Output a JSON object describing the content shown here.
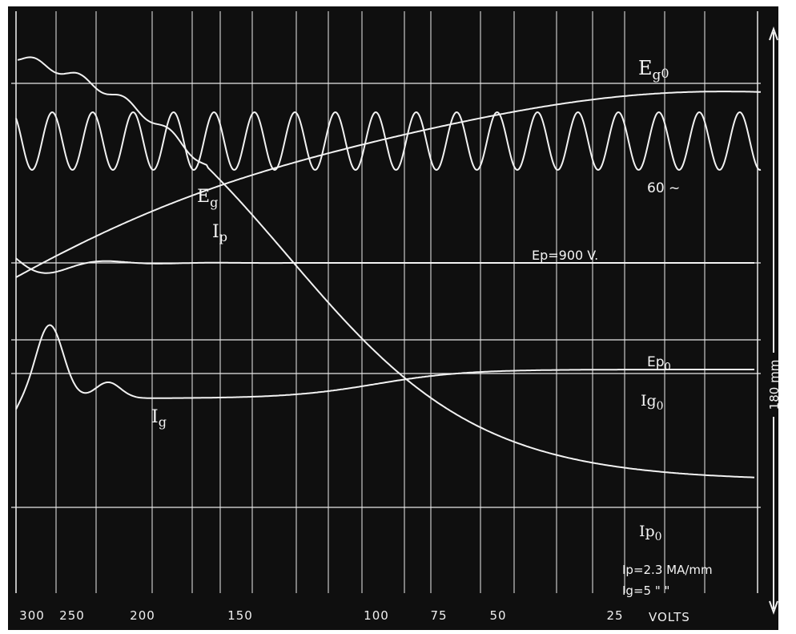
{
  "chart_data": {
    "type": "line",
    "x_axis": {
      "tick_labels": [
        "300",
        "250",
        "200",
        "150",
        "100",
        "75",
        "50",
        "25"
      ],
      "unit_label": "VOLTS"
    },
    "y_axis": {
      "scale_label": "180 mm"
    },
    "trace_labels": {
      "eg0": {
        "main": "E",
        "sub": "g",
        "subsub": "0"
      },
      "eg": {
        "main": "E",
        "sub": "g"
      },
      "ip": {
        "main": "I",
        "sub": "p"
      },
      "sixty": "60 ~",
      "ep_900": "Ep=900 V.",
      "ep0": {
        "main": "Ep",
        "sub": "0"
      },
      "ig0": {
        "main": "Ig",
        "sub": "0"
      },
      "ig": {
        "main": "I",
        "sub": "g"
      },
      "ip0": {
        "main": "Ip",
        "sub": "0"
      }
    },
    "scale_notes": [
      "Ip=2.3 MA/mm",
      "Ig=5 \"  \""
    ],
    "colors": {
      "background": "#0f0f0f",
      "trace": "#f2f2f2",
      "grid": "#e8e8e8"
    }
  }
}
